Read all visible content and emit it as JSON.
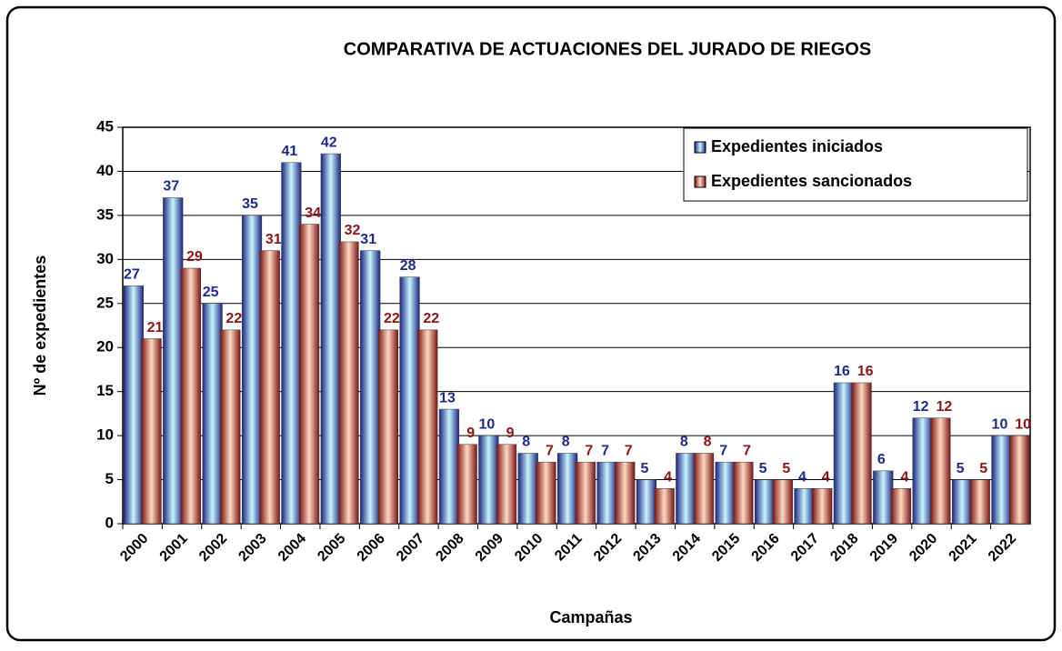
{
  "chart_data": {
    "type": "bar",
    "title": "COMPARATIVA DE ACTUACIONES DEL JURADO DE RIEGOS",
    "x_label": "Campañas",
    "y_label": "Nº de expedientes",
    "categories": [
      "2000",
      "2001",
      "2002",
      "2003",
      "2004",
      "2005",
      "2006",
      "2007",
      "2008",
      "2009",
      "2010",
      "2011",
      "2012",
      "2013",
      "2014",
      "2015",
      "2016",
      "2017",
      "2018",
      "2019",
      "2020",
      "2021",
      "2022"
    ],
    "series": [
      {
        "name": "Expedientes iniciados",
        "color": "#1c2580",
        "label_color": "#1f2a8c",
        "values": [
          27,
          37,
          25,
          35,
          41,
          42,
          31,
          28,
          13,
          10,
          8,
          8,
          7,
          5,
          8,
          7,
          5,
          4,
          16,
          6,
          12,
          5,
          10
        ]
      },
      {
        "name": "Expedientes sancionados",
        "color": "#7a1414",
        "label_color": "#8b1414",
        "values": [
          21,
          29,
          22,
          31,
          34,
          32,
          22,
          22,
          9,
          9,
          7,
          7,
          7,
          4,
          8,
          7,
          5,
          4,
          16,
          4,
          12,
          5,
          10
        ]
      }
    ],
    "ylim": [
      0,
      45
    ],
    "yticks": [
      0,
      5,
      10,
      15,
      20,
      25,
      30,
      35,
      40,
      45
    ],
    "grid": true,
    "legend": "upper right"
  }
}
